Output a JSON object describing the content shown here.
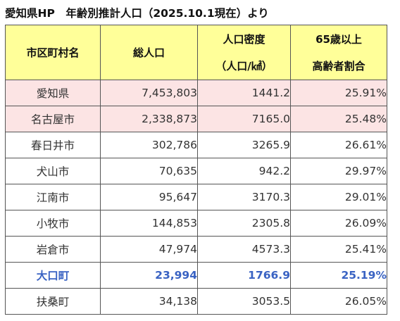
{
  "title": "愛知県HP　年齢別推計人口（2025.10.1現在）より",
  "headers": {
    "municipality": "市区町村名",
    "population": "総人口",
    "density_line1": "人口密度",
    "density_line2": "（人口/㎢）",
    "elderly_line1": "65歳以上",
    "elderly_line2": "高齢者割合"
  },
  "rows": [
    {
      "name": "愛知県",
      "population": "7,453,803",
      "density": "1441.2",
      "elderly": "25.91%"
    },
    {
      "name": "名古屋市",
      "population": "2,338,873",
      "density": "7165.0",
      "elderly": "25.48%"
    },
    {
      "name": "春日井市",
      "population": "302,786",
      "density": "3265.9",
      "elderly": "26.61%"
    },
    {
      "name": "犬山市",
      "population": "70,635",
      "density": "942.2",
      "elderly": "29.97%"
    },
    {
      "name": "江南市",
      "population": "95,647",
      "density": "3170.3",
      "elderly": "29.01%"
    },
    {
      "name": "小牧市",
      "population": "144,853",
      "density": "2305.8",
      "elderly": "26.09%"
    },
    {
      "name": "岩倉市",
      "population": "47,974",
      "density": "4573.3",
      "elderly": "25.41%"
    },
    {
      "name": "大口町",
      "population": "23,994",
      "density": "1766.9",
      "elderly": "25.19%"
    },
    {
      "name": "扶桑町",
      "population": "34,138",
      "density": "3053.5",
      "elderly": "26.05%"
    }
  ],
  "colors": {
    "header_bg": "#ffff99",
    "prefecture_bg": "#fce4e4",
    "highlight_text": "#3a63c3"
  }
}
